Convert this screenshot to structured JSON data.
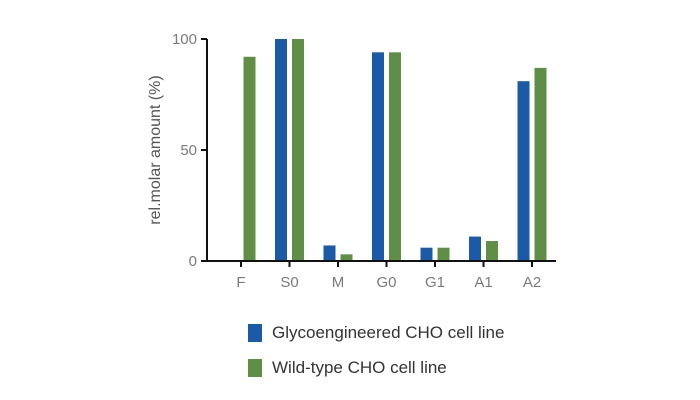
{
  "chart_data": {
    "type": "bar",
    "categories": [
      "F",
      "S0",
      "M",
      "G0",
      "G1",
      "A1",
      "A2"
    ],
    "series": [
      {
        "name": "Glycoengineered CHO cell line",
        "color": "#1a5aa6",
        "values": [
          null,
          100,
          7,
          94,
          6,
          11,
          81
        ]
      },
      {
        "name": "Wild-type CHO cell line",
        "color": "#5f8f46",
        "values": [
          92,
          100,
          3,
          94,
          6,
          9,
          87
        ]
      }
    ],
    "ylabel": "rel.molar amount (%)",
    "xlabel": "",
    "ylim": [
      0,
      100
    ],
    "yticks": [
      0,
      50,
      100
    ],
    "grid": false,
    "legend_position": "bottom"
  }
}
